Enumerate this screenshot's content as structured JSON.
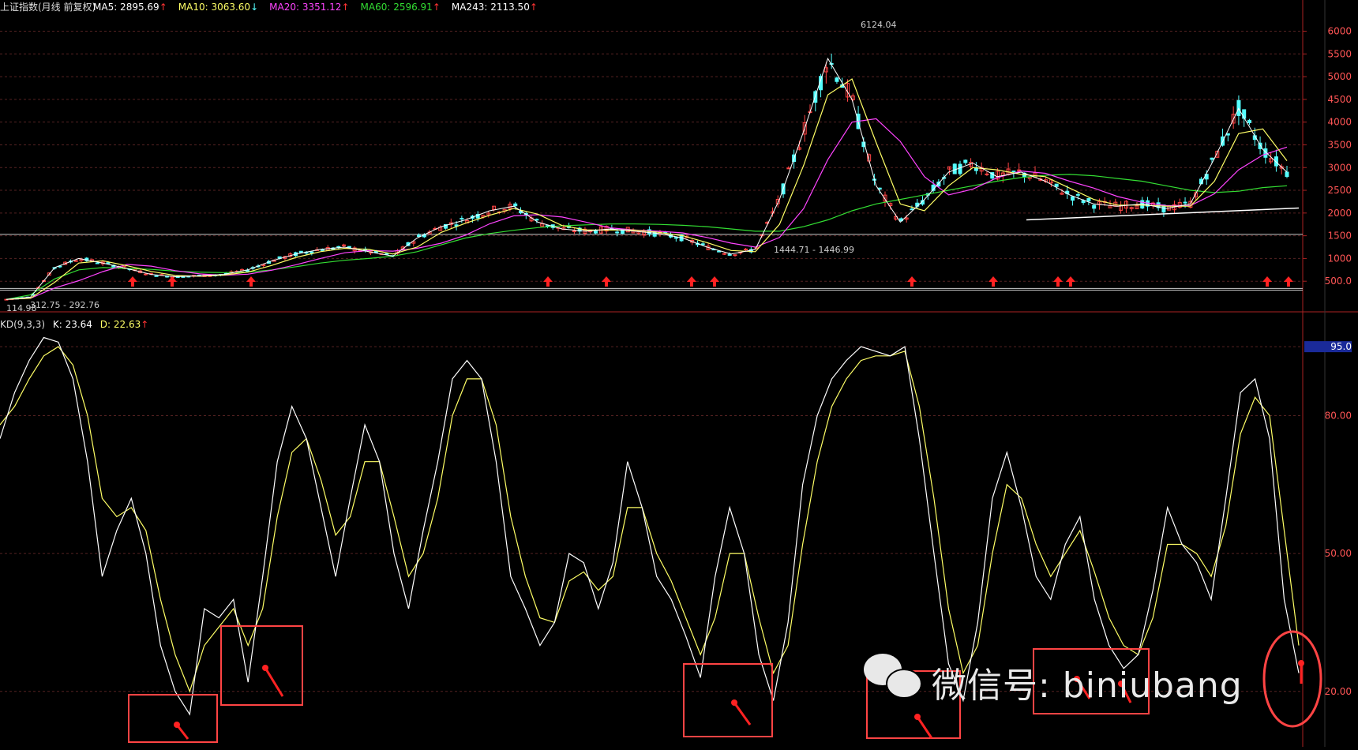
{
  "header": {
    "title": "上证指数(月线 前复权)",
    "indicators": [
      {
        "label": "MA5: 2895.69",
        "color": "#ffffff",
        "arrow": "up"
      },
      {
        "label": "MA10: 3063.60",
        "color": "#ffff66",
        "arrow": "down"
      },
      {
        "label": "MA20: 3351.12",
        "color": "#ff44ff",
        "arrow": "up"
      },
      {
        "label": "MA60: 2596.91",
        "color": "#33dd33",
        "arrow": "up"
      },
      {
        "label": "MA243: 2113.50",
        "color": "#ffffff",
        "arrow": "up"
      }
    ],
    "kd_title": "KD(9,3,3)",
    "kd_k": "K: 23.64",
    "kd_d": "D: 22.63"
  },
  "annotations": {
    "high": "6124.04",
    "mid_low": "1444.71 - 1446.99",
    "early_low": "312.75 - 292.76",
    "early_left": "114.98"
  },
  "watermark": "微信号: biniubang",
  "colors": {
    "up": "#ff4444",
    "down": "#55ffff",
    "arrow": "#ff2222",
    "box": "#ff4444",
    "k_line": "#ffffff",
    "d_line": "#ffff66",
    "ma60": "#33dd33",
    "ma20": "#ff44ff",
    "ma10": "#ffff66"
  },
  "chart_data": [
    {
      "type": "line",
      "title": "上证指数(月线 前复权)",
      "ylim": [
        0,
        6200
      ],
      "yticks": [
        "500.0",
        "1000",
        "1500",
        "2000",
        "2500",
        "3000",
        "3500",
        "4000",
        "4500",
        "5000",
        "5500",
        "6000"
      ],
      "series": [
        {
          "name": "MA5",
          "values": [
            100,
            150,
            800,
            1000,
            900,
            780,
            650,
            600,
            620,
            650,
            750,
            950,
            1100,
            1200,
            1250,
            1150,
            1050,
            1450,
            1700,
            1850,
            2050,
            2150,
            1800,
            1650,
            1600,
            1650,
            1600,
            1550,
            1450,
            1250,
            1100,
            1200,
            2300,
            3800,
            5400,
            4500,
            2600,
            1800,
            2300,
            2900,
            3100,
            2800,
            2900,
            2700,
            2400,
            2200,
            2150,
            2200,
            2100,
            2200,
            3200,
            4300,
            3400,
            2900
          ]
        },
        {
          "name": "MA60",
          "values": [
            100,
            200,
            550,
            750,
            800,
            780,
            760,
            720,
            700,
            690,
            700,
            750,
            820,
            900,
            960,
            1000,
            1050,
            1150,
            1300,
            1450,
            1550,
            1620,
            1680,
            1720,
            1740,
            1760,
            1760,
            1750,
            1730,
            1700,
            1650,
            1600,
            1600,
            1700,
            1850,
            2050,
            2200,
            2300,
            2400,
            2500,
            2600,
            2700,
            2780,
            2830,
            2850,
            2820,
            2760,
            2700,
            2600,
            2500,
            2450,
            2480,
            2560,
            2600
          ]
        }
      ]
    },
    {
      "type": "line",
      "title": "KD(9,3,3)",
      "ylim": [
        10,
        100
      ],
      "yticks": [
        "20.00",
        "50.00",
        "80.00",
        "95.0"
      ],
      "series": [
        {
          "name": "K",
          "values": [
            75,
            85,
            92,
            97,
            96,
            88,
            70,
            45,
            55,
            62,
            50,
            30,
            20,
            15,
            38,
            36,
            40,
            22,
            45,
            70,
            82,
            75,
            60,
            45,
            62,
            78,
            70,
            50,
            38,
            55,
            70,
            88,
            92,
            88,
            70,
            45,
            38,
            30,
            35,
            50,
            48,
            38,
            48,
            70,
            60,
            45,
            40,
            32,
            23,
            45,
            60,
            50,
            28,
            18,
            35,
            65,
            80,
            88,
            92,
            95,
            94,
            93,
            95,
            75,
            50,
            26,
            18,
            35,
            62,
            72,
            60,
            45,
            40,
            52,
            58,
            40,
            30,
            25,
            28,
            42,
            60,
            52,
            48,
            40,
            62,
            85,
            88,
            75,
            40,
            24
          ]
        },
        {
          "name": "D",
          "values": [
            78,
            82,
            88,
            93,
            95,
            91,
            80,
            62,
            58,
            60,
            55,
            40,
            28,
            20,
            30,
            34,
            38,
            30,
            38,
            58,
            72,
            75,
            66,
            54,
            58,
            70,
            70,
            58,
            45,
            50,
            62,
            80,
            88,
            88,
            78,
            58,
            45,
            36,
            35,
            44,
            46,
            42,
            45,
            60,
            60,
            50,
            44,
            36,
            28,
            36,
            50,
            50,
            36,
            24,
            30,
            52,
            70,
            82,
            88,
            92,
            93,
            93,
            94,
            82,
            62,
            38,
            24,
            30,
            50,
            65,
            62,
            52,
            45,
            50,
            55,
            46,
            36,
            30,
            28,
            36,
            52,
            52,
            50,
            45,
            56,
            76,
            84,
            80,
            55,
            30
          ]
        }
      ]
    }
  ]
}
